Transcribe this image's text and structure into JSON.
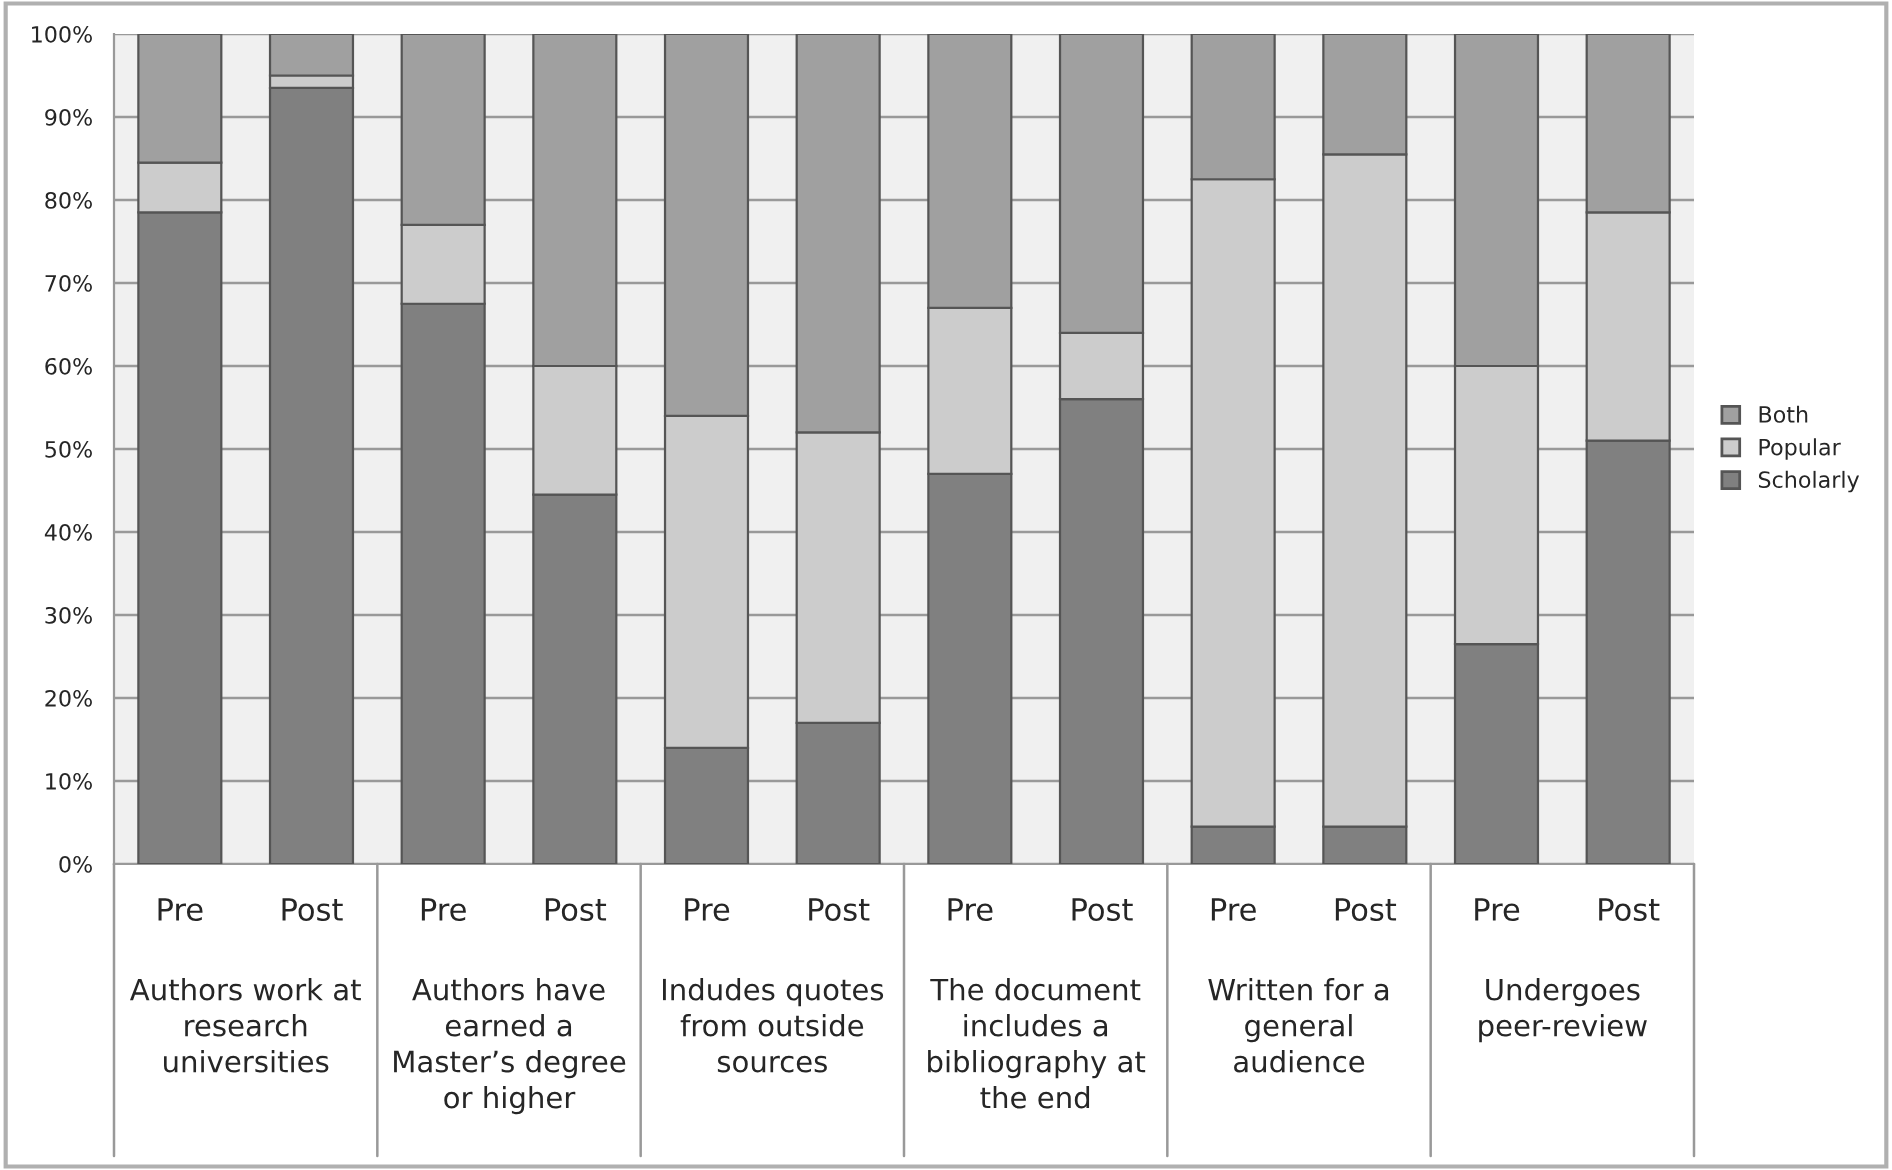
{
  "chart_data": {
    "type": "bar",
    "stacked": true,
    "categories": [
      "Pre",
      "Post",
      "Pre",
      "Post",
      "Pre",
      "Post",
      "Pre",
      "Post",
      "Pre",
      "Post",
      "Pre",
      "Post"
    ],
    "series": [
      {
        "name": "Scholarly",
        "color": "#808080",
        "values": [
          78.5,
          93.5,
          67.5,
          44.5,
          14,
          17,
          47,
          56,
          4.5,
          4.5,
          26.5,
          51
        ]
      },
      {
        "name": "Popular",
        "color": "#cccccc",
        "values": [
          6,
          1.5,
          9.5,
          15.5,
          40,
          35,
          20,
          8,
          78,
          81,
          33.5,
          27.5
        ]
      },
      {
        "name": "Both",
        "color": "#a0a0a0",
        "values": [
          15.5,
          5,
          23,
          40,
          46,
          48,
          33,
          36,
          17.5,
          14.5,
          40,
          21.5
        ]
      }
    ],
    "annotations": [
      "Authors work at\nresearch\nuniversities",
      "Authors have\nearned a\nMaster’s degree\nor higher",
      "Indudes quotes\nfrom outside\nsources",
      "The document\nincludes a\nbibliography at\nthe end",
      "Written for a\ngeneral\naudience",
      "Undergoes\npeer-review"
    ],
    "ylim": [
      0,
      100
    ],
    "yticks": [
      {
        "value": 0,
        "label": "0%"
      },
      {
        "value": 10,
        "label": "10%"
      },
      {
        "value": 20,
        "label": "20%"
      },
      {
        "value": 30,
        "label": "30%"
      },
      {
        "value": 40,
        "label": "40%"
      },
      {
        "value": 50,
        "label": "50%"
      },
      {
        "value": 60,
        "label": "60%"
      },
      {
        "value": 70,
        "label": "70%"
      },
      {
        "value": 80,
        "label": "80%"
      },
      {
        "value": 90,
        "label": "90%"
      },
      {
        "value": 100,
        "label": "100%"
      }
    ],
    "grid": "y",
    "legend": "right"
  }
}
